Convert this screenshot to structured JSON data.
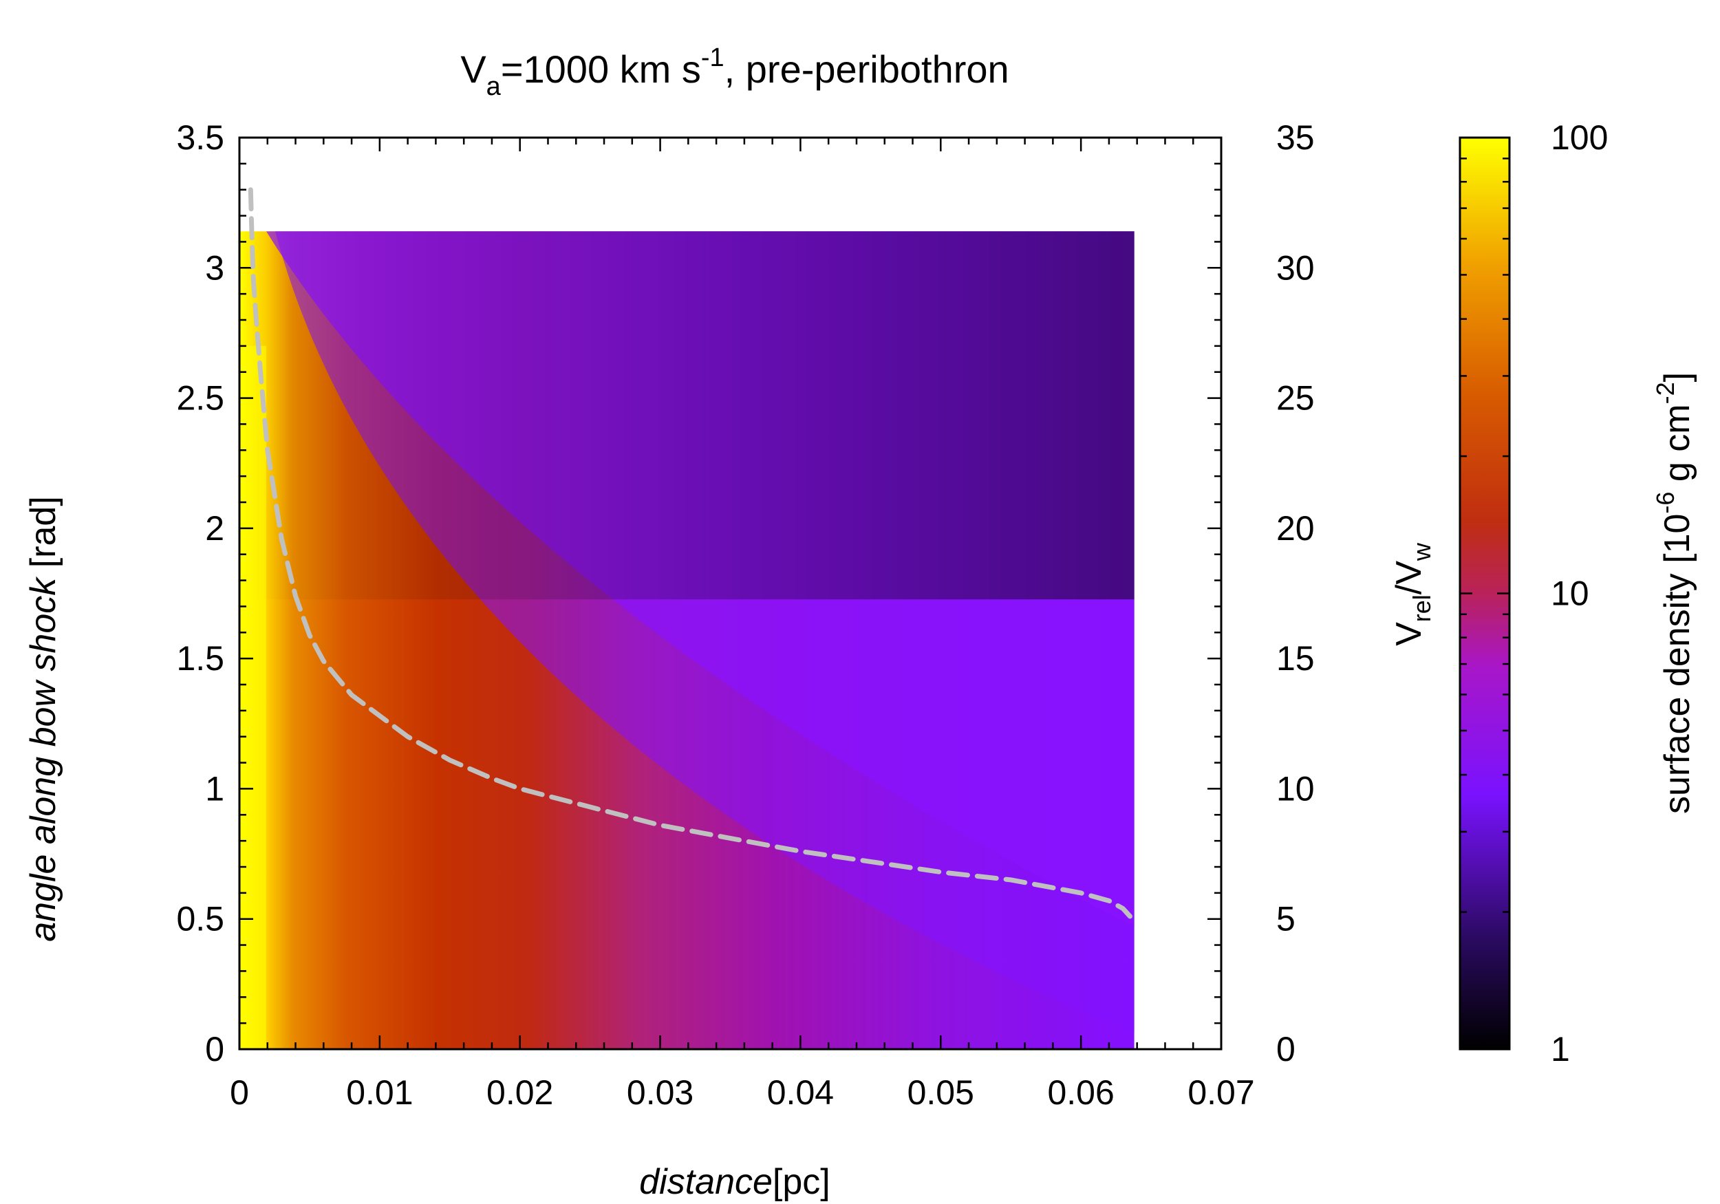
{
  "chart_data": {
    "type": "heatmap",
    "title": {
      "main": "V",
      "main_sub": "a",
      "main_rest": "=1000 km s",
      "main_sup": "-1",
      "suffix": ", pre-peribothron"
    },
    "xlabel": {
      "italic": "distance",
      "rest": "[pc]"
    },
    "ylabel": {
      "italic": "angle along bow shock",
      "rest": " [rad]"
    },
    "y2label": {
      "v": "V",
      "sub1": "rel",
      "slash": "/V",
      "sub2": "w"
    },
    "colorbar_label": {
      "pre": "surface density [10",
      "sup1": "-6",
      "mid": " g cm",
      "sup2": "-2",
      "post": "]"
    },
    "xlim": [
      0,
      0.07
    ],
    "ylim": [
      0,
      3.5
    ],
    "y2lim": [
      0,
      35
    ],
    "colorbar_range": [
      1,
      100
    ],
    "colorbar_scale": "log",
    "x_ticks": [
      0,
      0.01,
      0.02,
      0.03,
      0.04,
      0.05,
      0.06,
      0.07
    ],
    "x_tick_labels": [
      "0",
      "0.01",
      "0.02",
      "0.03",
      "0.04",
      "0.05",
      "0.06",
      "0.07"
    ],
    "y_ticks": [
      0,
      0.5,
      1,
      1.5,
      2,
      2.5,
      3,
      3.5
    ],
    "y_tick_labels": [
      "0",
      "0.5",
      "1",
      "1.5",
      "2",
      "2.5",
      "3",
      "3.5"
    ],
    "y2_ticks": [
      0,
      5,
      10,
      15,
      20,
      25,
      30,
      35
    ],
    "y2_tick_labels": [
      "0",
      "5",
      "10",
      "15",
      "20",
      "25",
      "30",
      "35"
    ],
    "colorbar_ticks": [
      1,
      10,
      100
    ],
    "colorbar_tick_labels": [
      "1",
      "10",
      "100"
    ],
    "heatmap_extent": {
      "x": [
        0,
        0.0638
      ],
      "y": [
        0,
        3.14
      ]
    },
    "colormap": [
      "#000000",
      "#3a0a8a",
      "#8a12ff",
      "#a812c0",
      "#b8226a",
      "#c03200",
      "#d85a00",
      "#f2a000",
      "#ffff00"
    ],
    "dashed_curve": {
      "name": "V_rel/V_w",
      "axis": "y2",
      "color": "#c0c0c0",
      "x": [
        0.0008,
        0.0009,
        0.001,
        0.0012,
        0.0015,
        0.002,
        0.003,
        0.004,
        0.005,
        0.006,
        0.008,
        0.01,
        0.012,
        0.015,
        0.018,
        0.02,
        0.025,
        0.03,
        0.035,
        0.04,
        0.045,
        0.05,
        0.055,
        0.058,
        0.06,
        0.062,
        0.063,
        0.0635
      ],
      "y": [
        33.0,
        31.0,
        29.5,
        28.0,
        26.0,
        23.0,
        19.6,
        17.4,
        15.9,
        14.9,
        13.6,
        12.8,
        12.0,
        11.1,
        10.4,
        10.0,
        9.3,
        8.6,
        8.1,
        7.6,
        7.2,
        6.8,
        6.5,
        6.2,
        6.0,
        5.7,
        5.4,
        5.1
      ]
    }
  }
}
